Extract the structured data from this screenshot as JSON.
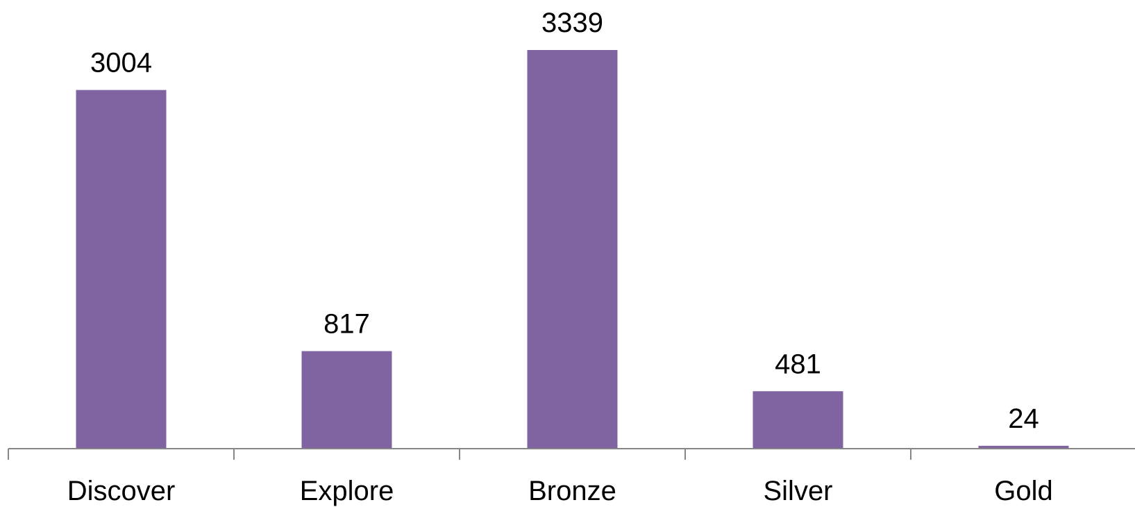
{
  "chart_data": {
    "type": "bar",
    "categories": [
      "Discover",
      "Explore",
      "Bronze",
      "Silver",
      "Gold"
    ],
    "values": [
      3004,
      817,
      3339,
      481,
      24
    ],
    "data_labels": [
      "3004",
      "817",
      "3339",
      "481",
      "24"
    ],
    "title": "",
    "xlabel": "",
    "ylabel": "",
    "ylim": [
      0,
      3339
    ],
    "grid": false,
    "legend": "none",
    "bar_color": "#8064A2",
    "axis_color": "#868686"
  }
}
